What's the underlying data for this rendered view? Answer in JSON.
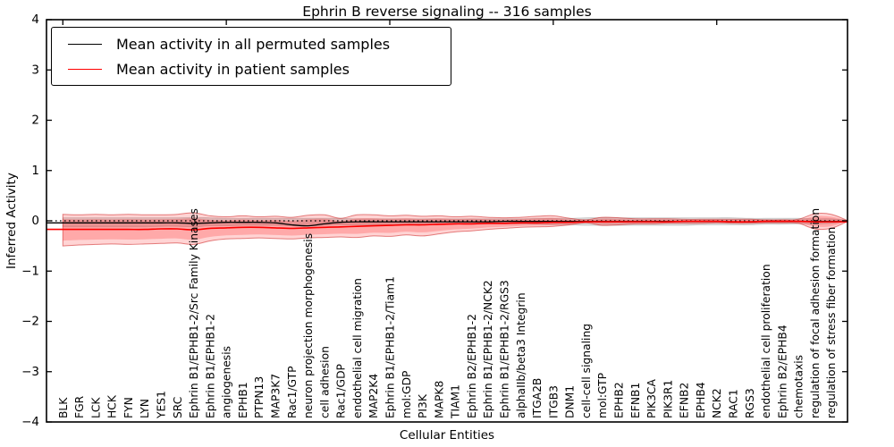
{
  "figure": {
    "title": "Ephrin B reverse signaling -- 316 samples",
    "xlabel": "Cellular Entities",
    "ylabel": "Inferred Activity"
  },
  "legend": {
    "items": [
      {
        "label": "Mean activity in all permuted samples",
        "color": "#000000"
      },
      {
        "label": "Mean activity in patient samples",
        "color": "#ff0000"
      }
    ]
  },
  "colors": {
    "patient_line": "#ff0000",
    "permuted_line": "#000000",
    "patient_band": "#f5a0a0",
    "permuted_band": "#d9d9d9",
    "axis": "#000000"
  },
  "chart_data": {
    "type": "line",
    "title": "Ephrin B reverse signaling -- 316 samples",
    "xlabel": "Cellular Entities",
    "ylabel": "Inferred Activity",
    "ylim": [
      -4,
      4
    ],
    "yticks": [
      4,
      3,
      2,
      1,
      0,
      -1,
      -2,
      -3,
      -4
    ],
    "xtick_positions": [
      0,
      10,
      20,
      30,
      40
    ],
    "zero_reference": 0,
    "grid": false,
    "legend_position": "upper left",
    "categories": [
      "BLK",
      "FGR",
      "LCK",
      "HCK",
      "FYN",
      "LYN",
      "YES1",
      "SRC",
      "Ephrin B1/EPHB1-2/Src Family Kinases",
      "Ephrin B1/EPHB1-2",
      "angiogenesis",
      "EPHB1",
      "PTPN13",
      "MAP3K7",
      "Rac1/GTP",
      "neuron projection morphogenesis",
      "cell adhesion",
      "Rac1/GDP",
      "endothelial cell migration",
      "MAP2K4",
      "Ephrin B1/EPHB1-2/Tiam1",
      "mol:GDP",
      "PI3K",
      "MAPK8",
      "TIAM1",
      "Ephrin B2/EPHB1-2",
      "Ephrin B1/EPHB1-2/NCK2",
      "Ephrin B1/EPHB1-2/RGS3",
      "alphaIIb/beta3 Integrin",
      "ITGA2B",
      "ITGB3",
      "DNM1",
      "cell-cell signaling",
      "mol:GTP",
      "EPHB2",
      "EFNB1",
      "PIK3CA",
      "PIK3R1",
      "EFNB2",
      "EPHB4",
      "NCK2",
      "RAC1",
      "RGS3",
      "endothelial cell proliferation",
      "Ephrin B2/EPHB4",
      "chemotaxis",
      "regulation of focal adhesion formation",
      "regulation of stress fiber formation"
    ],
    "series": [
      {
        "name": "Mean activity in all permuted samples",
        "color": "#000000",
        "values": [
          -0.04,
          -0.04,
          -0.04,
          -0.04,
          -0.04,
          -0.04,
          -0.04,
          -0.04,
          -0.05,
          -0.04,
          -0.03,
          -0.03,
          -0.03,
          -0.04,
          -0.08,
          -0.1,
          -0.06,
          -0.03,
          -0.02,
          -0.02,
          -0.02,
          -0.02,
          -0.02,
          -0.02,
          -0.02,
          -0.02,
          -0.02,
          -0.01,
          -0.01,
          -0.01,
          -0.01,
          -0.01,
          -0.01,
          -0.01,
          -0.01,
          -0.01,
          -0.01,
          -0.01,
          -0.01,
          -0.01,
          -0.01,
          -0.02,
          -0.02,
          -0.01,
          -0.01,
          -0.01,
          -0.01,
          -0.01
        ]
      },
      {
        "name": "Mean activity in patient samples",
        "color": "#ff0000",
        "values": [
          -0.17,
          -0.17,
          -0.17,
          -0.17,
          -0.17,
          -0.17,
          -0.16,
          -0.16,
          -0.18,
          -0.15,
          -0.14,
          -0.13,
          -0.13,
          -0.14,
          -0.15,
          -0.14,
          -0.13,
          -0.12,
          -0.11,
          -0.1,
          -0.09,
          -0.08,
          -0.08,
          -0.07,
          -0.06,
          -0.06,
          -0.05,
          -0.05,
          -0.04,
          -0.04,
          -0.03,
          -0.03,
          -0.02,
          -0.02,
          -0.02,
          -0.02,
          -0.02,
          -0.02,
          -0.01,
          -0.01,
          -0.01,
          -0.02,
          -0.02,
          -0.01,
          -0.01,
          -0.01,
          -0.02,
          -0.02
        ]
      }
    ],
    "bands": [
      {
        "name": "patient samples spread",
        "color": "#ff0000",
        "upper": [
          0.13,
          0.12,
          0.13,
          0.12,
          0.13,
          0.12,
          0.12,
          0.13,
          0.16,
          0.1,
          0.08,
          0.1,
          0.08,
          0.09,
          0.07,
          0.11,
          0.12,
          0.05,
          0.12,
          0.12,
          0.1,
          0.11,
          0.09,
          0.1,
          0.08,
          0.09,
          0.07,
          0.06,
          0.07,
          0.09,
          0.1,
          0.05,
          0.02,
          0.07,
          0.06,
          0.04,
          0.04,
          0.04,
          0.03,
          0.03,
          0.03,
          0.03,
          0.03,
          0.02,
          0.02,
          0.03,
          0.14,
          0.13
        ],
        "lower": [
          -0.5,
          -0.48,
          -0.47,
          -0.46,
          -0.47,
          -0.46,
          -0.45,
          -0.44,
          -0.47,
          -0.4,
          -0.36,
          -0.35,
          -0.34,
          -0.35,
          -0.36,
          -0.34,
          -0.33,
          -0.32,
          -0.33,
          -0.3,
          -0.31,
          -0.28,
          -0.3,
          -0.26,
          -0.22,
          -0.2,
          -0.17,
          -0.15,
          -0.13,
          -0.12,
          -0.11,
          -0.08,
          -0.04,
          -0.09,
          -0.08,
          -0.06,
          -0.06,
          -0.05,
          -0.05,
          -0.05,
          -0.04,
          -0.05,
          -0.05,
          -0.04,
          -0.04,
          -0.05,
          -0.16,
          -0.15
        ]
      },
      {
        "name": "permuted samples spread",
        "color": "#aaaaaa",
        "upper": [
          0.06,
          0.06,
          0.06,
          0.06,
          0.06,
          0.06,
          0.06,
          0.06,
          0.07,
          0.06,
          0.05,
          0.05,
          0.05,
          0.05,
          0.05,
          0.05,
          0.05,
          0.05,
          0.04,
          0.04,
          0.04,
          0.04,
          0.04,
          0.04,
          0.04,
          0.04,
          0.04,
          0.04,
          0.04,
          0.05,
          0.05,
          0.05,
          0.06,
          0.06,
          0.06,
          0.06,
          0.06,
          0.06,
          0.06,
          0.06,
          0.06,
          0.06,
          0.05,
          0.05,
          0.05,
          0.05,
          0.04,
          0.04
        ],
        "lower": [
          -0.12,
          -0.12,
          -0.12,
          -0.12,
          -0.12,
          -0.12,
          -0.11,
          -0.11,
          -0.12,
          -0.1,
          -0.1,
          -0.09,
          -0.09,
          -0.09,
          -0.1,
          -0.1,
          -0.09,
          -0.08,
          -0.08,
          -0.08,
          -0.08,
          -0.07,
          -0.07,
          -0.07,
          -0.06,
          -0.06,
          -0.06,
          -0.06,
          -0.06,
          -0.07,
          -0.08,
          -0.08,
          -0.09,
          -0.09,
          -0.09,
          -0.09,
          -0.09,
          -0.09,
          -0.09,
          -0.08,
          -0.08,
          -0.08,
          -0.08,
          -0.07,
          -0.07,
          -0.06,
          -0.06,
          -0.05
        ]
      }
    ]
  }
}
